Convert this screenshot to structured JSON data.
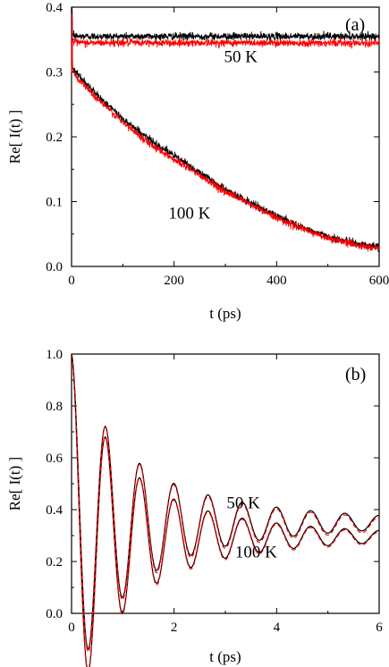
{
  "chart_data": [
    {
      "type": "line",
      "panel_label": "(a)",
      "xlabel": "t (ps)",
      "ylabel": "Re[ I(t) ]",
      "xlim": [
        0,
        600
      ],
      "ylim": [
        0.0,
        0.4
      ],
      "xticks": [
        "0",
        "200",
        "400",
        "600"
      ],
      "yticks": [
        "0.0",
        "0.1",
        "0.2",
        "0.3",
        "0.4"
      ],
      "xtick_values": [
        0,
        200,
        400,
        600
      ],
      "ytick_values": [
        0.0,
        0.1,
        0.2,
        0.3,
        0.4
      ],
      "grid": false,
      "annotations": [
        {
          "text": "50 K",
          "x": 330,
          "y": 0.315
        },
        {
          "text": "100 K",
          "x": 230,
          "y": 0.074
        }
      ],
      "series": [
        {
          "color": "#000000",
          "noisy": true,
          "x": [
            0,
            1,
            2,
            3,
            5,
            10,
            30,
            100,
            200,
            300,
            400,
            500,
            600
          ],
          "y": [
            0.3,
            0.4,
            0.36,
            0.357,
            0.356,
            0.355,
            0.355,
            0.355,
            0.355,
            0.355,
            0.355,
            0.355,
            0.355
          ]
        },
        {
          "color": "#ff0000",
          "noisy": true,
          "x": [
            0,
            1,
            2,
            3,
            5,
            10,
            30,
            100,
            200,
            300,
            400,
            500,
            600
          ],
          "y": [
            0.3,
            0.39,
            0.35,
            0.346,
            0.346,
            0.345,
            0.345,
            0.345,
            0.345,
            0.345,
            0.345,
            0.345,
            0.345
          ]
        },
        {
          "color": "#000000",
          "noisy": true,
          "x": [
            0,
            1,
            2,
            3,
            5,
            25,
            50,
            100,
            150,
            200,
            250,
            300,
            350,
            400,
            450,
            500,
            550,
            600
          ],
          "y": [
            0.3,
            0.4,
            0.31,
            0.305,
            0.302,
            0.285,
            0.264,
            0.228,
            0.197,
            0.171,
            0.145,
            0.118,
            0.098,
            0.078,
            0.06,
            0.046,
            0.036,
            0.03
          ]
        },
        {
          "color": "#ff0000",
          "noisy": true,
          "x": [
            0,
            1,
            2,
            3,
            5,
            25,
            50,
            100,
            150,
            200,
            250,
            300,
            350,
            400,
            450,
            500,
            550,
            600
          ],
          "y": [
            0.3,
            0.39,
            0.305,
            0.3,
            0.297,
            0.28,
            0.259,
            0.222,
            0.191,
            0.165,
            0.141,
            0.115,
            0.095,
            0.075,
            0.058,
            0.044,
            0.034,
            0.028
          ]
        }
      ]
    },
    {
      "type": "line",
      "panel_label": "(b)",
      "xlabel": "t (ps)",
      "ylabel": "Re[ I(t) ]",
      "xlim": [
        0,
        6
      ],
      "ylim": [
        0.0,
        1.0
      ],
      "xticks": [
        "0",
        "2",
        "4",
        "6"
      ],
      "yticks": [
        "0.0",
        "0.2",
        "0.4",
        "0.6",
        "0.8",
        "1.0"
      ],
      "xtick_values": [
        0,
        2,
        4,
        6
      ],
      "ytick_values": [
        0.0,
        0.2,
        0.4,
        0.6,
        0.8,
        1.0
      ],
      "grid": false,
      "annotations": [
        {
          "text": "50 K",
          "x": 3.35,
          "y": 0.405
        },
        {
          "text": "100 K",
          "x": 3.6,
          "y": 0.215
        }
      ],
      "series": [
        {
          "color": "#000000",
          "style": "solid",
          "model": "damped-cos",
          "asymptote": 0.35,
          "amplitude": 0.65,
          "frequency": 1.5,
          "decay_fast": 1.2,
          "weight_fast": 0.65,
          "decay_slow": 0.35
        },
        {
          "color": "#ff0000",
          "style": "dashed",
          "model": "damped-cos",
          "asymptote": 0.343,
          "amplitude": 0.657,
          "frequency": 1.5,
          "decay_fast": 1.2,
          "weight_fast": 0.65,
          "decay_slow": 0.35
        },
        {
          "color": "#000000",
          "style": "solid",
          "model": "damped-cos",
          "asymptote": 0.296,
          "amplitude": 0.704,
          "frequency": 1.5,
          "decay_fast": 1.25,
          "weight_fast": 0.68,
          "decay_slow": 0.38
        },
        {
          "color": "#ff0000",
          "style": "dashed",
          "model": "damped-cos",
          "asymptote": 0.291,
          "amplitude": 0.709,
          "frequency": 1.5,
          "decay_fast": 1.25,
          "weight_fast": 0.68,
          "decay_slow": 0.38
        }
      ]
    }
  ]
}
